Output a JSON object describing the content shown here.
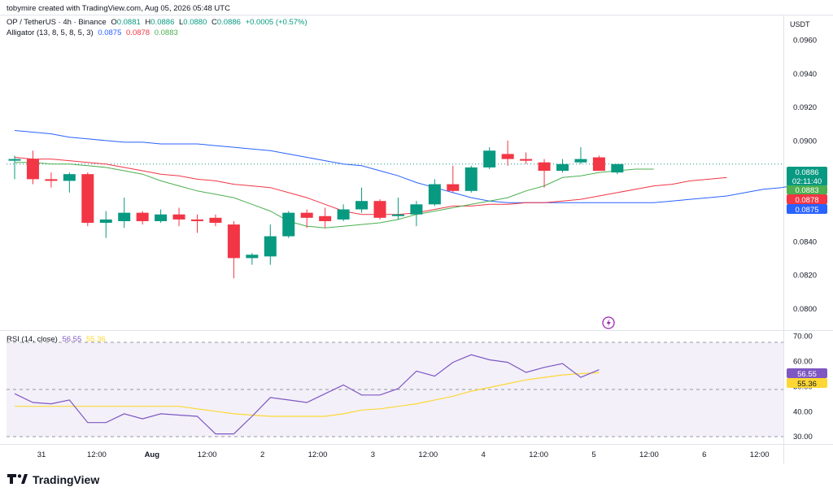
{
  "header": {
    "credit": "tobymire created with TradingView.com, Aug 05, 2026 05:48 UTC",
    "symbol": "OP / TetherUS · 4h · Binance",
    "o_label": "O",
    "o": "0.0881",
    "h_label": "H",
    "h": "0.0886",
    "l_label": "L",
    "l": "0.0880",
    "c_label": "C",
    "c": "0.0886",
    "change": "+0.0005 (+0.57%)",
    "alligator_label": "Alligator (13, 8, 5, 8, 5, 3)",
    "alligator_jaw": "0.0875",
    "alligator_teeth": "0.0878",
    "alligator_lips": "0.0883"
  },
  "currency": "USDT",
  "rsi_header": {
    "label": "RSI (14, close)",
    "rsi": "56.55",
    "ma": "55.36"
  },
  "logo": {
    "text": "TradingView"
  },
  "colors": {
    "up": "#089981",
    "down": "#f23645",
    "jaw": "#2962ff",
    "teeth": "#f23645",
    "lips": "#4caf50",
    "rsi": "#7e57c2",
    "rsi_ma": "#fdd835"
  },
  "chart_data": [
    {
      "type": "candlestick",
      "title": "OP / TetherUS · 4h · Binance",
      "ylim": [
        0.079,
        0.0975
      ],
      "yticks": [
        "0.0960",
        "0.0940",
        "0.0920",
        "0.0900",
        "0.0880",
        "0.0860",
        "0.0840",
        "0.0820",
        "0.0800"
      ],
      "xticks": [
        "31",
        "12:00",
        "Aug",
        "12:00",
        "2",
        "12:00",
        "3",
        "12:00",
        "4",
        "12:00",
        "5",
        "12:00",
        "6",
        "12:00"
      ],
      "candles": [
        {
          "o": 0.0888,
          "h": 0.0891,
          "l": 0.0877,
          "c": 0.0889
        },
        {
          "o": 0.0889,
          "h": 0.0894,
          "l": 0.0874,
          "c": 0.0877
        },
        {
          "o": 0.0877,
          "h": 0.0881,
          "l": 0.0872,
          "c": 0.0876
        },
        {
          "o": 0.0876,
          "h": 0.0881,
          "l": 0.0869,
          "c": 0.088
        },
        {
          "o": 0.088,
          "h": 0.0881,
          "l": 0.0849,
          "c": 0.0851
        },
        {
          "o": 0.0851,
          "h": 0.0858,
          "l": 0.0842,
          "c": 0.0853
        },
        {
          "o": 0.0852,
          "h": 0.0866,
          "l": 0.0848,
          "c": 0.0857
        },
        {
          "o": 0.0857,
          "h": 0.0858,
          "l": 0.085,
          "c": 0.0852
        },
        {
          "o": 0.0852,
          "h": 0.0859,
          "l": 0.0851,
          "c": 0.0856
        },
        {
          "o": 0.0856,
          "h": 0.086,
          "l": 0.0849,
          "c": 0.0853
        },
        {
          "o": 0.0853,
          "h": 0.0856,
          "l": 0.0845,
          "c": 0.0852
        },
        {
          "o": 0.0854,
          "h": 0.0856,
          "l": 0.0849,
          "c": 0.0851
        },
        {
          "o": 0.085,
          "h": 0.0852,
          "l": 0.0818,
          "c": 0.083
        },
        {
          "o": 0.083,
          "h": 0.0833,
          "l": 0.0826,
          "c": 0.0832
        },
        {
          "o": 0.0831,
          "h": 0.085,
          "l": 0.0826,
          "c": 0.0843
        },
        {
          "o": 0.0843,
          "h": 0.0858,
          "l": 0.0842,
          "c": 0.0857
        },
        {
          "o": 0.0857,
          "h": 0.0859,
          "l": 0.0848,
          "c": 0.0854
        },
        {
          "o": 0.0855,
          "h": 0.086,
          "l": 0.0848,
          "c": 0.0852
        },
        {
          "o": 0.0853,
          "h": 0.0862,
          "l": 0.0852,
          "c": 0.0859
        },
        {
          "o": 0.0859,
          "h": 0.0872,
          "l": 0.0857,
          "c": 0.0864
        },
        {
          "o": 0.0864,
          "h": 0.0865,
          "l": 0.0853,
          "c": 0.0854
        },
        {
          "o": 0.0855,
          "h": 0.0866,
          "l": 0.0853,
          "c": 0.0856
        },
        {
          "o": 0.0856,
          "h": 0.0864,
          "l": 0.0849,
          "c": 0.0862
        },
        {
          "o": 0.0862,
          "h": 0.0877,
          "l": 0.0861,
          "c": 0.0874
        },
        {
          "o": 0.0874,
          "h": 0.0885,
          "l": 0.0869,
          "c": 0.087
        },
        {
          "o": 0.087,
          "h": 0.0885,
          "l": 0.0869,
          "c": 0.0884
        },
        {
          "o": 0.0884,
          "h": 0.0896,
          "l": 0.0883,
          "c": 0.0894
        },
        {
          "o": 0.0892,
          "h": 0.09,
          "l": 0.0885,
          "c": 0.0889
        },
        {
          "o": 0.0889,
          "h": 0.0893,
          "l": 0.0886,
          "c": 0.0888
        },
        {
          "o": 0.0887,
          "h": 0.0889,
          "l": 0.0872,
          "c": 0.0882
        },
        {
          "o": 0.0882,
          "h": 0.0889,
          "l": 0.0881,
          "c": 0.0886
        },
        {
          "o": 0.0887,
          "h": 0.0896,
          "l": 0.0886,
          "c": 0.0889
        },
        {
          "o": 0.089,
          "h": 0.0891,
          "l": 0.0882,
          "c": 0.0882
        },
        {
          "o": 0.0881,
          "h": 0.0886,
          "l": 0.088,
          "c": 0.0886
        }
      ],
      "jaw": [
        0.0906,
        0.0905,
        0.0904,
        0.0902,
        0.0901,
        0.09,
        0.0899,
        0.0899,
        0.0898,
        0.0898,
        0.0898,
        0.0897,
        0.0896,
        0.0895,
        0.0894,
        0.0892,
        0.089,
        0.0888,
        0.0886,
        0.0885,
        0.0882,
        0.0879,
        0.0875,
        0.0872,
        0.0869,
        0.0866,
        0.0864,
        0.0863,
        0.0863,
        0.0863,
        0.0863,
        0.0863,
        0.0863,
        0.0863,
        0.0863,
        0.0863,
        0.0864,
        0.0865,
        0.0866,
        0.0867,
        0.0869,
        0.0871,
        0.0872,
        0.0874,
        0.0875
      ],
      "teeth": [
        0.089,
        0.0889,
        0.0889,
        0.0888,
        0.0887,
        0.0886,
        0.0884,
        0.0882,
        0.088,
        0.0879,
        0.0877,
        0.0876,
        0.0874,
        0.0873,
        0.0872,
        0.0869,
        0.0866,
        0.0862,
        0.0858,
        0.0856,
        0.0856,
        0.0856,
        0.0857,
        0.0859,
        0.0861,
        0.0861,
        0.0862,
        0.0862,
        0.0863,
        0.0863,
        0.0864,
        0.0865,
        0.0867,
        0.0869,
        0.0871,
        0.0873,
        0.0874,
        0.0876,
        0.0877,
        0.0878
      ],
      "lips": [
        0.0887,
        0.0887,
        0.0886,
        0.0886,
        0.0885,
        0.0884,
        0.0882,
        0.088,
        0.0876,
        0.0873,
        0.087,
        0.0868,
        0.0866,
        0.0862,
        0.0858,
        0.0852,
        0.0849,
        0.0848,
        0.0849,
        0.085,
        0.0851,
        0.0853,
        0.0856,
        0.0858,
        0.086,
        0.0862,
        0.0864,
        0.0866,
        0.087,
        0.0873,
        0.0878,
        0.0879,
        0.0881,
        0.0882,
        0.0883,
        0.0883
      ],
      "last_price": "0.0886",
      "countdown": "02:11:40",
      "axis_labels": {
        "lips": "0.0883",
        "teeth": "0.0878",
        "jaw": "0.0875"
      }
    },
    {
      "type": "line",
      "title": "RSI (14, close)",
      "ylim": [
        27,
        72
      ],
      "yticks": [
        "70.00",
        "60.00",
        "50.00",
        "40.00",
        "30.00"
      ],
      "bands": [
        30,
        50,
        70
      ],
      "series": [
        {
          "name": "RSI",
          "values": [
            47,
            43.5,
            43,
            44.5,
            35.5,
            35.5,
            39,
            37,
            39,
            38.5,
            38,
            31,
            31,
            38,
            45.5,
            44.5,
            43.5,
            47,
            50.5,
            46.5,
            46.5,
            49,
            56,
            54,
            59.5,
            62.5,
            60.5,
            59.5,
            55.5,
            57.5,
            59,
            53.5,
            56.55
          ]
        },
        {
          "name": "MA",
          "values": [
            42,
            42,
            42,
            42,
            42,
            42,
            42,
            42,
            42,
            42,
            41,
            40,
            39,
            38.5,
            38,
            38,
            38,
            38,
            39,
            40.5,
            41,
            42,
            43,
            44.5,
            46,
            48,
            49.5,
            51,
            52.5,
            53.5,
            54.5,
            55,
            55.36
          ]
        }
      ],
      "last_rsi": "56.55",
      "last_ma": "55.36"
    }
  ]
}
